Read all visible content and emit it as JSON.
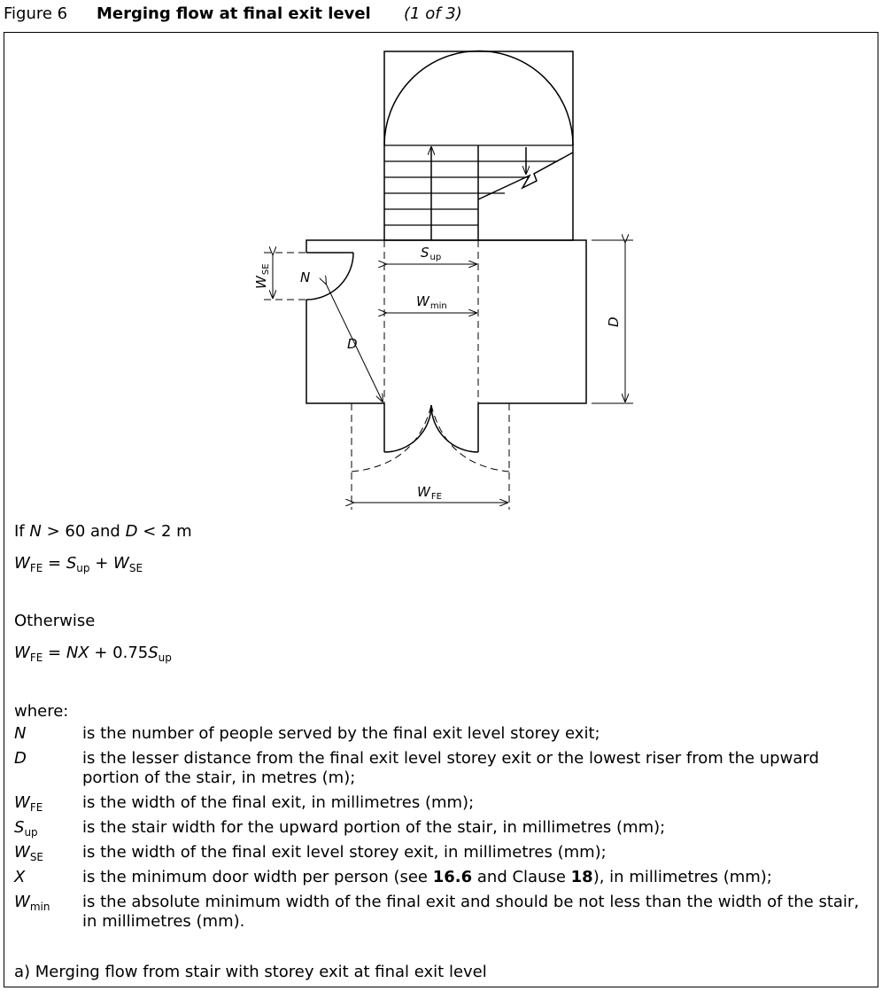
{
  "figure": {
    "number": "Figure 6",
    "title": "Merging flow at final exit level",
    "part": "(1 of 3)"
  },
  "diagram_labels": {
    "s_up": {
      "main": "S",
      "sub": "up"
    },
    "w_min": {
      "main": "W",
      "sub": "min"
    },
    "w_fe": {
      "main": "W",
      "sub": "FE"
    },
    "w_se": {
      "main": "W",
      "sub": "SE"
    },
    "n": "N",
    "d_diag": "D",
    "d_right": "D"
  },
  "conditions": {
    "if_prefix": "If ",
    "if_n": "N",
    "if_mid": " > 60 and ",
    "if_d": "D",
    "if_suffix": " < 2 m",
    "eq1": {
      "w": "W",
      "w_sub": "FE",
      "eq": " = ",
      "s": "S",
      "s_sub": "up",
      "plus": " + ",
      "w2": "W",
      "w2_sub": "SE"
    },
    "otherwise": "Otherwise",
    "eq2": {
      "w": "W",
      "w_sub": "FE",
      "eq": " = ",
      "nx": "NX",
      "plus": " + 0.75",
      "s": "S",
      "s_sub": "up"
    }
  },
  "where_label": "where:",
  "definitions": [
    {
      "sym": "N",
      "sub": "",
      "text": "is the number of people served by the final exit level storey exit;"
    },
    {
      "sym": "D",
      "sub": "",
      "text": "is the lesser distance from the final exit level storey exit or the lowest riser from the upward portion of the stair, in metres (m);"
    },
    {
      "sym": "W",
      "sub": "FE",
      "text": "is the width of the final exit, in millimetres (mm);"
    },
    {
      "sym": "S",
      "sub": "up",
      "text": "is the stair width for the upward portion of the stair, in millimetres (mm);"
    },
    {
      "sym": "W",
      "sub": "SE",
      "text": "is the width of the final exit level storey exit, in millimetres (mm);"
    },
    {
      "sym": "X",
      "sub": "",
      "pre": "is the minimum door width per person (see ",
      "ref1": "16.6",
      "mid": " and Clause ",
      "ref2": "18",
      "post": "), in millimetres (mm);"
    },
    {
      "sym": "W",
      "sub": "min",
      "text": "is the absolute minimum width of the final exit and should be not less than the width of the stair, in millimetres (mm)."
    }
  ],
  "caption": "a) Merging flow from stair with storey exit at final exit level"
}
